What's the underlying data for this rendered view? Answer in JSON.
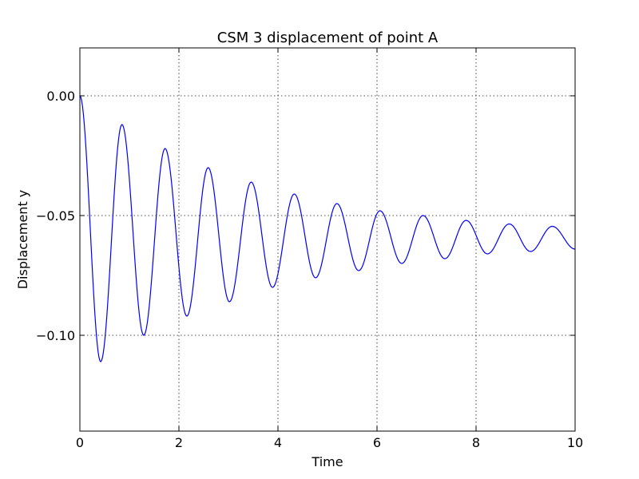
{
  "chart_data": {
    "type": "line",
    "title": "CSM 3 displacement of point A",
    "xlabel": "Time",
    "ylabel": "Displacement y",
    "xlim": [
      0,
      10
    ],
    "ylim": [
      -0.14,
      0.02
    ],
    "xticks": [
      0,
      2,
      4,
      6,
      8,
      10
    ],
    "xtick_labels": [
      "0",
      "2",
      "4",
      "6",
      "8",
      "10"
    ],
    "yticks": [
      0.0,
      -0.05,
      -0.1
    ],
    "ytick_labels": [
      "0.00",
      "−0.05",
      "−0.10"
    ],
    "grid": true,
    "legend": "none",
    "series": [
      {
        "color": "#0000ff",
        "x": [
          0.0,
          0.42,
          0.85,
          1.29,
          1.72,
          2.16,
          2.59,
          3.02,
          3.46,
          3.89,
          4.33,
          4.76,
          5.19,
          5.63,
          6.06,
          6.5,
          6.93,
          7.37,
          7.8,
          8.23,
          8.67,
          9.1,
          9.54,
          10.0
        ],
        "y": [
          0.0,
          -0.111,
          -0.012,
          -0.1,
          -0.022,
          -0.092,
          -0.03,
          -0.086,
          -0.036,
          -0.08,
          -0.041,
          -0.076,
          -0.045,
          -0.073,
          -0.048,
          -0.07,
          -0.05,
          -0.068,
          -0.052,
          -0.066,
          -0.0535,
          -0.065,
          -0.0545,
          -0.064
        ]
      }
    ]
  }
}
